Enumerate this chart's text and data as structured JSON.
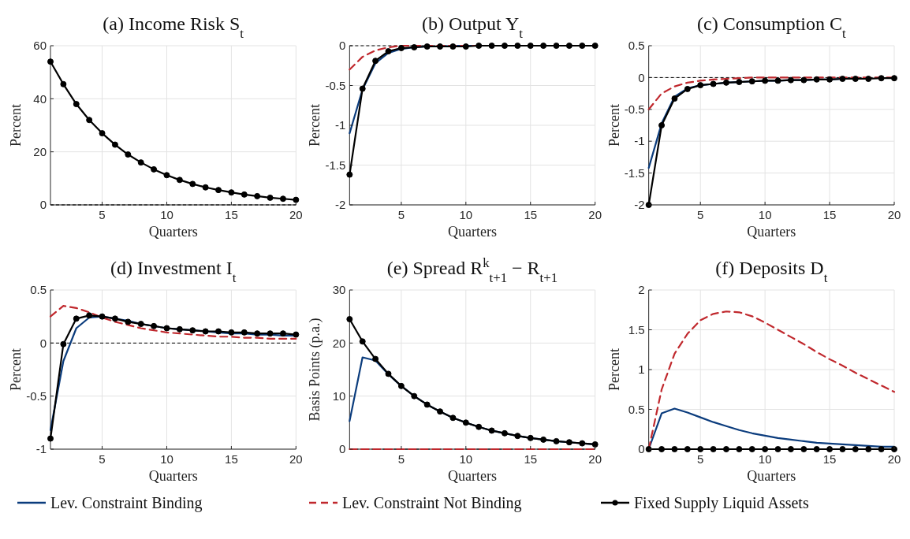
{
  "chart_data": [
    {
      "type": "line",
      "title": "(a) Income Risk S$_{t}$",
      "xlabel": "Quarters",
      "ylabel": "Percent",
      "x": [
        1,
        2,
        3,
        4,
        5,
        6,
        7,
        8,
        9,
        10,
        11,
        12,
        13,
        14,
        15,
        16,
        17,
        18,
        19,
        20
      ],
      "xlim": [
        1,
        20
      ],
      "xticks": [
        5,
        10,
        15,
        20
      ],
      "ylim": [
        0,
        60
      ],
      "yticks": [
        0,
        20,
        40,
        60
      ],
      "grid": true,
      "legend": "bottom",
      "ref_lines": [
        {
          "axis": "y",
          "value": 0,
          "color": "#000000",
          "line_style": "dashed"
        }
      ],
      "series": [
        {
          "name": "Fixed Supply Liquid Assets",
          "color": "#000000",
          "marker": "circle",
          "line_style": "solid",
          "values": [
            54,
            45.5,
            38,
            32,
            27,
            22.7,
            19,
            16,
            13.4,
            11.2,
            9.4,
            7.9,
            6.6,
            5.6,
            4.7,
            3.9,
            3.3,
            2.7,
            2.3,
            1.9
          ]
        }
      ]
    },
    {
      "type": "line",
      "title": "(b) Output Y$_{t}$",
      "xlabel": "Quarters",
      "ylabel": "Percent",
      "x": [
        1,
        2,
        3,
        4,
        5,
        6,
        7,
        8,
        9,
        10,
        11,
        12,
        13,
        14,
        15,
        16,
        17,
        18,
        19,
        20
      ],
      "xlim": [
        1,
        20
      ],
      "xticks": [
        5,
        10,
        15,
        20
      ],
      "ylim": [
        -2,
        0
      ],
      "yticks": [
        -2,
        -1.5,
        -1,
        -0.5,
        0
      ],
      "grid": true,
      "legend": "bottom",
      "ref_lines": [
        {
          "axis": "y",
          "value": 0,
          "color": "#000000",
          "line_style": "dashed"
        }
      ],
      "series": [
        {
          "name": "Lev. Constraint Binding",
          "color": "#0b3c7d",
          "marker": "none",
          "line_style": "solid",
          "values": [
            -1.1,
            -0.55,
            -0.22,
            -0.09,
            -0.04,
            -0.02,
            -0.01,
            -0.01,
            0,
            0,
            0,
            null,
            null,
            null,
            null,
            null,
            null,
            null,
            null,
            null
          ]
        },
        {
          "name": "Lev. Constraint Not Binding",
          "color": "#c0282d",
          "marker": "none",
          "line_style": "dashed",
          "values": [
            -0.3,
            -0.14,
            -0.06,
            -0.02,
            0,
            0,
            0,
            0,
            0,
            0,
            0,
            null,
            null,
            null,
            null,
            null,
            null,
            null,
            null,
            null
          ]
        },
        {
          "name": "Fixed Supply Liquid Assets",
          "color": "#000000",
          "marker": "circle",
          "line_style": "solid",
          "values": [
            -1.62,
            -0.54,
            -0.19,
            -0.07,
            -0.03,
            -0.02,
            -0.01,
            -0.01,
            -0.01,
            -0.01,
            0,
            0,
            0,
            0,
            0,
            0,
            0,
            0,
            0,
            0
          ]
        }
      ]
    },
    {
      "type": "line",
      "title": "(c) Consumption C$_{t}$",
      "xlabel": "Quarters",
      "ylabel": "Percent",
      "x": [
        1,
        2,
        3,
        4,
        5,
        6,
        7,
        8,
        9,
        10,
        11,
        12,
        13,
        14,
        15,
        16,
        17,
        18,
        19,
        20
      ],
      "xlim": [
        1,
        20
      ],
      "xticks": [
        5,
        10,
        15,
        20
      ],
      "ylim": [
        -2,
        0.5
      ],
      "yticks": [
        -2,
        -1.5,
        -1,
        -0.5,
        0,
        0.5
      ],
      "grid": true,
      "legend": "bottom",
      "ref_lines": [
        {
          "axis": "y",
          "value": 0,
          "color": "#000000",
          "line_style": "dashed"
        }
      ],
      "series": [
        {
          "name": "Lev. Constraint Binding",
          "color": "#0b3c7d",
          "marker": "none",
          "line_style": "solid",
          "values": [
            -1.42,
            -0.72,
            -0.3,
            -0.17,
            -0.12,
            -0.1,
            -0.08,
            -0.07,
            -0.06,
            -0.05,
            -0.05,
            -0.04,
            -0.04,
            -0.03,
            -0.03,
            -0.02,
            -0.02,
            null,
            null,
            null
          ]
        },
        {
          "name": "Lev. Constraint Not Binding",
          "color": "#c0282d",
          "marker": "none",
          "line_style": "dashed",
          "values": [
            -0.5,
            -0.25,
            -0.14,
            -0.08,
            -0.05,
            -0.03,
            -0.02,
            -0.01,
            0,
            0,
            0,
            0,
            0,
            0,
            0,
            0,
            0,
            0,
            0,
            0
          ]
        },
        {
          "name": "Fixed Supply Liquid Assets",
          "color": "#000000",
          "marker": "circle",
          "line_style": "solid",
          "values": [
            -2,
            -0.75,
            -0.33,
            -0.18,
            -0.12,
            -0.1,
            -0.08,
            -0.07,
            -0.06,
            -0.05,
            -0.05,
            -0.04,
            -0.04,
            -0.03,
            -0.03,
            -0.02,
            -0.02,
            -0.02,
            -0.01,
            -0.01
          ]
        }
      ]
    },
    {
      "type": "line",
      "title": "(d) Investment I$_{t}$",
      "xlabel": "Quarters",
      "ylabel": "Percent",
      "x": [
        1,
        2,
        3,
        4,
        5,
        6,
        7,
        8,
        9,
        10,
        11,
        12,
        13,
        14,
        15,
        16,
        17,
        18,
        19,
        20
      ],
      "xlim": [
        1,
        20
      ],
      "xticks": [
        5,
        10,
        15,
        20
      ],
      "ylim": [
        -1,
        0.5
      ],
      "yticks": [
        -1,
        -0.5,
        0,
        0.5
      ],
      "grid": true,
      "legend": "bottom",
      "ref_lines": [
        {
          "axis": "y",
          "value": 0,
          "color": "#000000",
          "line_style": "dashed"
        }
      ],
      "series": [
        {
          "name": "Lev. Constraint Binding",
          "color": "#0b3c7d",
          "marker": "none",
          "line_style": "solid",
          "values": [
            -0.82,
            -0.17,
            0.14,
            0.24,
            0.25,
            0.23,
            0.21,
            0.18,
            0.16,
            0.14,
            0.13,
            0.12,
            0.11,
            0.1,
            0.09,
            0.09,
            0.08,
            0.08,
            0.07,
            0.07
          ]
        },
        {
          "name": "Lev. Constraint Not Binding",
          "color": "#c0282d",
          "marker": "none",
          "line_style": "dashed",
          "values": [
            0.25,
            0.35,
            0.33,
            0.29,
            0.24,
            0.2,
            0.17,
            0.14,
            0.12,
            0.1,
            0.09,
            0.08,
            0.07,
            0.06,
            0.06,
            0.05,
            0.05,
            0.04,
            0.04,
            0.04
          ]
        },
        {
          "name": "Fixed Supply Liquid Assets",
          "color": "#000000",
          "marker": "circle",
          "line_style": "solid",
          "values": [
            -0.9,
            -0.01,
            0.23,
            0.26,
            0.25,
            0.23,
            0.2,
            0.18,
            0.16,
            0.14,
            0.13,
            0.12,
            0.11,
            0.11,
            0.1,
            0.1,
            0.09,
            0.09,
            0.09,
            0.08
          ]
        }
      ]
    },
    {
      "type": "line",
      "title": "(e) Spread R$^{k}$$_{t+1}$ − R$_{t+1}$",
      "xlabel": "Quarters",
      "ylabel": "Basis Points (p.a.)",
      "x": [
        1,
        2,
        3,
        4,
        5,
        6,
        7,
        8,
        9,
        10,
        11,
        12,
        13,
        14,
        15,
        16,
        17,
        18,
        19,
        20
      ],
      "xlim": [
        1,
        20
      ],
      "xticks": [
        5,
        10,
        15,
        20
      ],
      "ylim": [
        0,
        30
      ],
      "yticks": [
        0,
        10,
        20,
        30
      ],
      "grid": true,
      "legend": "bottom",
      "ref_lines": [
        {
          "axis": "y",
          "value": 0,
          "color": "#000000",
          "line_style": "dashed"
        }
      ],
      "series": [
        {
          "name": "Lev. Constraint Binding",
          "color": "#0b3c7d",
          "marker": "none",
          "line_style": "solid",
          "values": [
            5.3,
            17.3,
            16.7,
            14.1,
            11.9,
            10,
            8.4,
            7.1,
            5.9,
            5,
            4.2,
            3.5,
            3,
            2.5,
            2.1,
            1.8,
            1.5,
            1.3,
            1.1,
            0.9
          ]
        },
        {
          "name": "Lev. Constraint Not Binding",
          "color": "#c0282d",
          "marker": "none",
          "line_style": "dashed",
          "values": [
            0,
            0,
            0,
            0,
            0,
            0,
            0,
            0,
            0,
            0,
            0,
            0,
            0,
            0,
            0,
            0,
            0,
            0,
            0,
            0
          ]
        },
        {
          "name": "Fixed Supply Liquid Assets",
          "color": "#000000",
          "marker": "circle",
          "line_style": "solid",
          "values": [
            24.5,
            20.3,
            17,
            14.2,
            11.9,
            10,
            8.4,
            7.1,
            5.9,
            5,
            4.2,
            3.5,
            3,
            2.5,
            2.1,
            1.8,
            1.5,
            1.3,
            1.1,
            0.9
          ]
        }
      ]
    },
    {
      "type": "line",
      "title": "(f) Deposits D$_{t}$",
      "xlabel": "Quarters",
      "ylabel": "Percent",
      "x": [
        1,
        2,
        3,
        4,
        5,
        6,
        7,
        8,
        9,
        10,
        11,
        12,
        13,
        14,
        15,
        16,
        17,
        18,
        19,
        20
      ],
      "xlim": [
        1,
        20
      ],
      "xticks": [
        5,
        10,
        15,
        20
      ],
      "ylim": [
        0,
        2
      ],
      "yticks": [
        0,
        0.5,
        1,
        1.5,
        2
      ],
      "grid": true,
      "legend": "bottom",
      "series": [
        {
          "name": "Lev. Constraint Binding",
          "color": "#0b3c7d",
          "marker": "none",
          "line_style": "solid",
          "values": [
            0,
            0.45,
            0.51,
            0.46,
            0.4,
            0.34,
            0.29,
            0.24,
            0.2,
            0.17,
            0.14,
            0.12,
            0.1,
            0.08,
            0.07,
            0.06,
            0.05,
            0.04,
            0.03,
            0.03
          ]
        },
        {
          "name": "Lev. Constraint Not Binding",
          "color": "#c0282d",
          "marker": "none",
          "line_style": "dashed",
          "values": [
            0,
            0.75,
            1.2,
            1.45,
            1.62,
            1.7,
            1.73,
            1.72,
            1.67,
            1.59,
            1.5,
            1.41,
            1.32,
            1.22,
            1.13,
            1.05,
            0.96,
            0.88,
            0.8,
            0.72
          ]
        },
        {
          "name": "Fixed Supply Liquid Assets",
          "color": "#000000",
          "marker": "circle",
          "line_style": "solid",
          "values": [
            0,
            0,
            0,
            0,
            0,
            0,
            0,
            0,
            0,
            0,
            0,
            0,
            0,
            0,
            0,
            0,
            0,
            0,
            0,
            0
          ]
        }
      ]
    }
  ]
}
